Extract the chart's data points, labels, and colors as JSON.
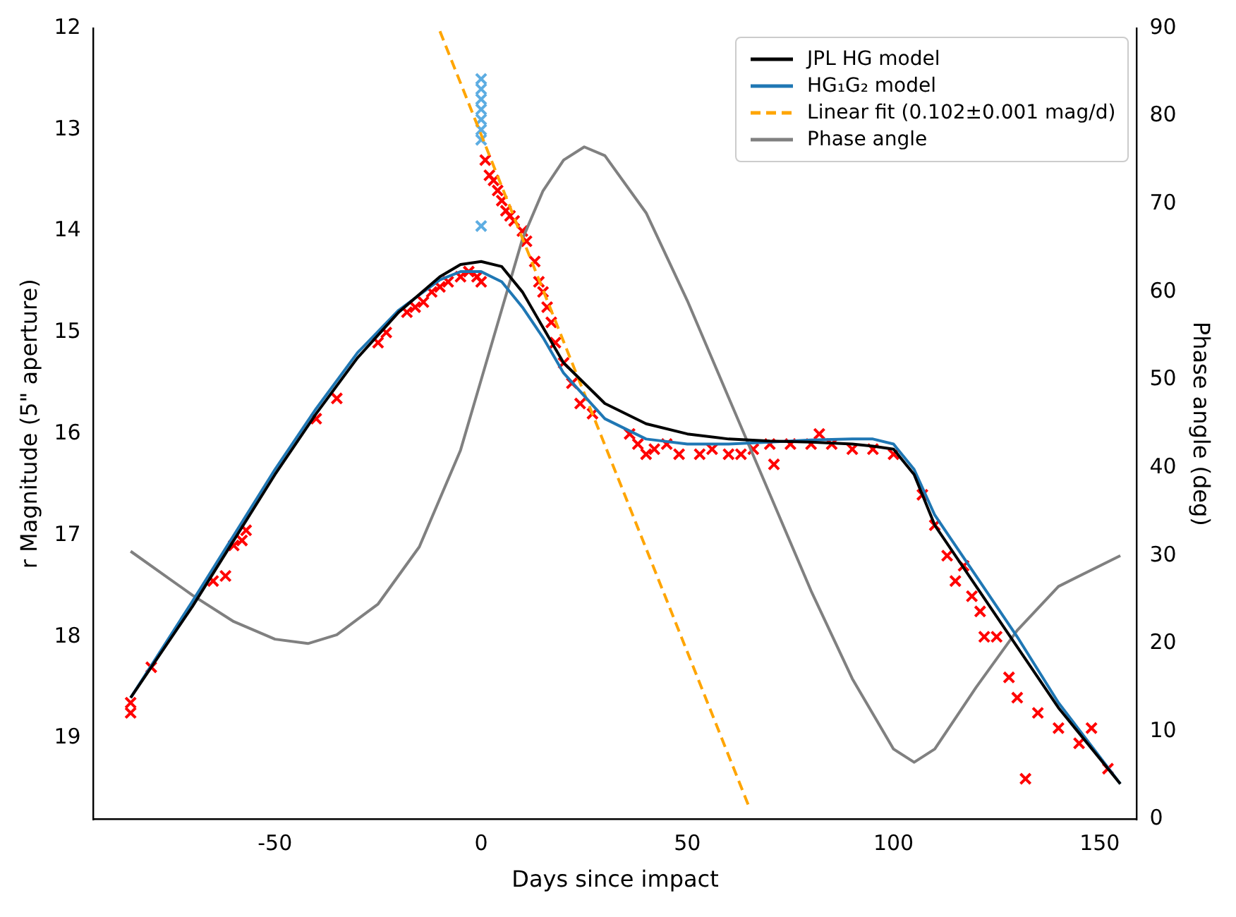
{
  "chart_data": {
    "type": "line",
    "xlabel": "Days since impact",
    "ylabel": "r Magnitude (5\" aperture)",
    "y2label": "Phase angle (deg)",
    "xlim": [
      -94,
      159
    ],
    "xticks": [
      -50,
      0,
      50,
      100,
      150
    ],
    "ylim": [
      19.8,
      12
    ],
    "yticks": [
      12,
      13,
      14,
      15,
      16,
      17,
      18,
      19
    ],
    "y2lim": [
      0,
      90
    ],
    "y2ticks": [
      0,
      10,
      20,
      30,
      40,
      50,
      60,
      70,
      80,
      90
    ],
    "grid": false,
    "legend": "top right",
    "series": [
      {
        "name": "JPL HG model",
        "color": "#000000",
        "marker": "none",
        "line_style": "solid",
        "x": [
          -85,
          -70,
          -60,
          -50,
          -40,
          -30,
          -20,
          -10,
          -5,
          0,
          5,
          10,
          15,
          20,
          30,
          40,
          50,
          60,
          70,
          80,
          90,
          95,
          100,
          105,
          110,
          120,
          130,
          140,
          155
        ],
        "values": [
          18.6,
          17.7,
          17.05,
          16.4,
          15.8,
          15.25,
          14.8,
          14.45,
          14.33,
          14.3,
          14.35,
          14.6,
          14.95,
          15.3,
          15.7,
          15.9,
          16.0,
          16.05,
          16.07,
          16.08,
          16.1,
          16.12,
          16.15,
          16.4,
          16.9,
          17.5,
          18.1,
          18.7,
          19.45
        ]
      },
      {
        "name": "HG₁G₂ model",
        "color": "#1f77b4",
        "marker": "none",
        "line_style": "solid",
        "x": [
          -85,
          -70,
          -60,
          -50,
          -40,
          -30,
          -20,
          -10,
          -5,
          0,
          5,
          10,
          15,
          20,
          30,
          40,
          50,
          60,
          70,
          80,
          90,
          95,
          100,
          105,
          110,
          120,
          130,
          140,
          155
        ],
        "values": [
          18.6,
          17.65,
          17.0,
          16.35,
          15.75,
          15.2,
          14.78,
          14.48,
          14.4,
          14.4,
          14.5,
          14.75,
          15.05,
          15.4,
          15.85,
          16.05,
          16.1,
          16.1,
          16.08,
          16.06,
          16.05,
          16.05,
          16.1,
          16.35,
          16.8,
          17.4,
          18.0,
          18.65,
          19.45
        ]
      },
      {
        "type": "scatter",
        "color": "#5dade2",
        "marker": "cross",
        "x": [
          0,
          0,
          0,
          0,
          0,
          0,
          0,
          0
        ],
        "values": [
          12.5,
          12.6,
          12.7,
          12.8,
          12.9,
          13.0,
          13.1,
          13.95
        ]
      },
      {
        "type": "scatter",
        "color": "#ff0000",
        "marker": "cross",
        "x": [
          -85,
          -85,
          -80,
          -65,
          -62,
          -60,
          -58,
          -57,
          -40,
          -35,
          -25,
          -23,
          -18,
          -16,
          -14,
          -12,
          -10,
          -8,
          -5,
          -3,
          -1,
          0,
          1,
          2,
          3,
          4,
          5,
          6,
          7,
          8,
          10,
          11,
          13,
          14,
          15,
          16,
          17,
          18,
          20,
          22,
          24,
          27,
          36,
          38,
          40,
          42,
          45,
          48,
          53,
          56,
          60,
          63,
          66,
          70,
          71,
          75,
          80,
          82,
          85,
          90,
          95,
          100,
          107,
          110,
          113,
          115,
          117,
          119,
          121,
          122,
          125,
          128,
          130,
          132,
          135,
          140,
          145,
          148,
          152
        ],
        "values": [
          18.65,
          18.75,
          18.3,
          17.45,
          17.4,
          17.1,
          17.05,
          16.95,
          15.85,
          15.65,
          15.1,
          15.0,
          14.8,
          14.75,
          14.7,
          14.6,
          14.55,
          14.5,
          14.45,
          14.4,
          14.45,
          14.5,
          13.3,
          13.45,
          13.5,
          13.6,
          13.7,
          13.8,
          13.85,
          13.9,
          14.0,
          14.1,
          14.3,
          14.5,
          14.6,
          14.75,
          14.9,
          15.1,
          15.3,
          15.5,
          15.7,
          15.8,
          16.0,
          16.1,
          16.2,
          16.15,
          16.1,
          16.2,
          16.2,
          16.15,
          16.2,
          16.2,
          16.15,
          16.1,
          16.3,
          16.1,
          16.1,
          16.0,
          16.1,
          16.15,
          16.15,
          16.2,
          16.6,
          16.9,
          17.2,
          17.45,
          17.3,
          17.6,
          17.75,
          18.0,
          18.0,
          18.4,
          18.6,
          19.4,
          18.75,
          18.9,
          19.05,
          18.9,
          19.3
        ]
      },
      {
        "name": "Linear fit (0.102±0.001 mag/d)",
        "color": "#ffa500",
        "marker": "none",
        "line_style": "dashed",
        "x": [
          -10,
          65
        ],
        "values": [
          12.03,
          19.68
        ]
      },
      {
        "name": "Phase angle",
        "color": "#808080",
        "marker": "none",
        "line_style": "solid",
        "axis": "y2",
        "x": [
          -85,
          -70,
          -60,
          -50,
          -42,
          -35,
          -25,
          -15,
          -5,
          0,
          5,
          10,
          15,
          20,
          25,
          30,
          40,
          50,
          60,
          70,
          80,
          90,
          100,
          105,
          110,
          120,
          130,
          140,
          155
        ],
        "values": [
          30.5,
          25.5,
          22.5,
          20.5,
          20,
          21,
          24.5,
          31,
          42,
          50,
          58,
          66,
          71.5,
          75,
          76.5,
          75.5,
          69,
          59,
          48,
          37,
          26,
          16,
          8,
          6.5,
          8,
          15,
          21.5,
          26.5,
          30
        ]
      }
    ]
  }
}
